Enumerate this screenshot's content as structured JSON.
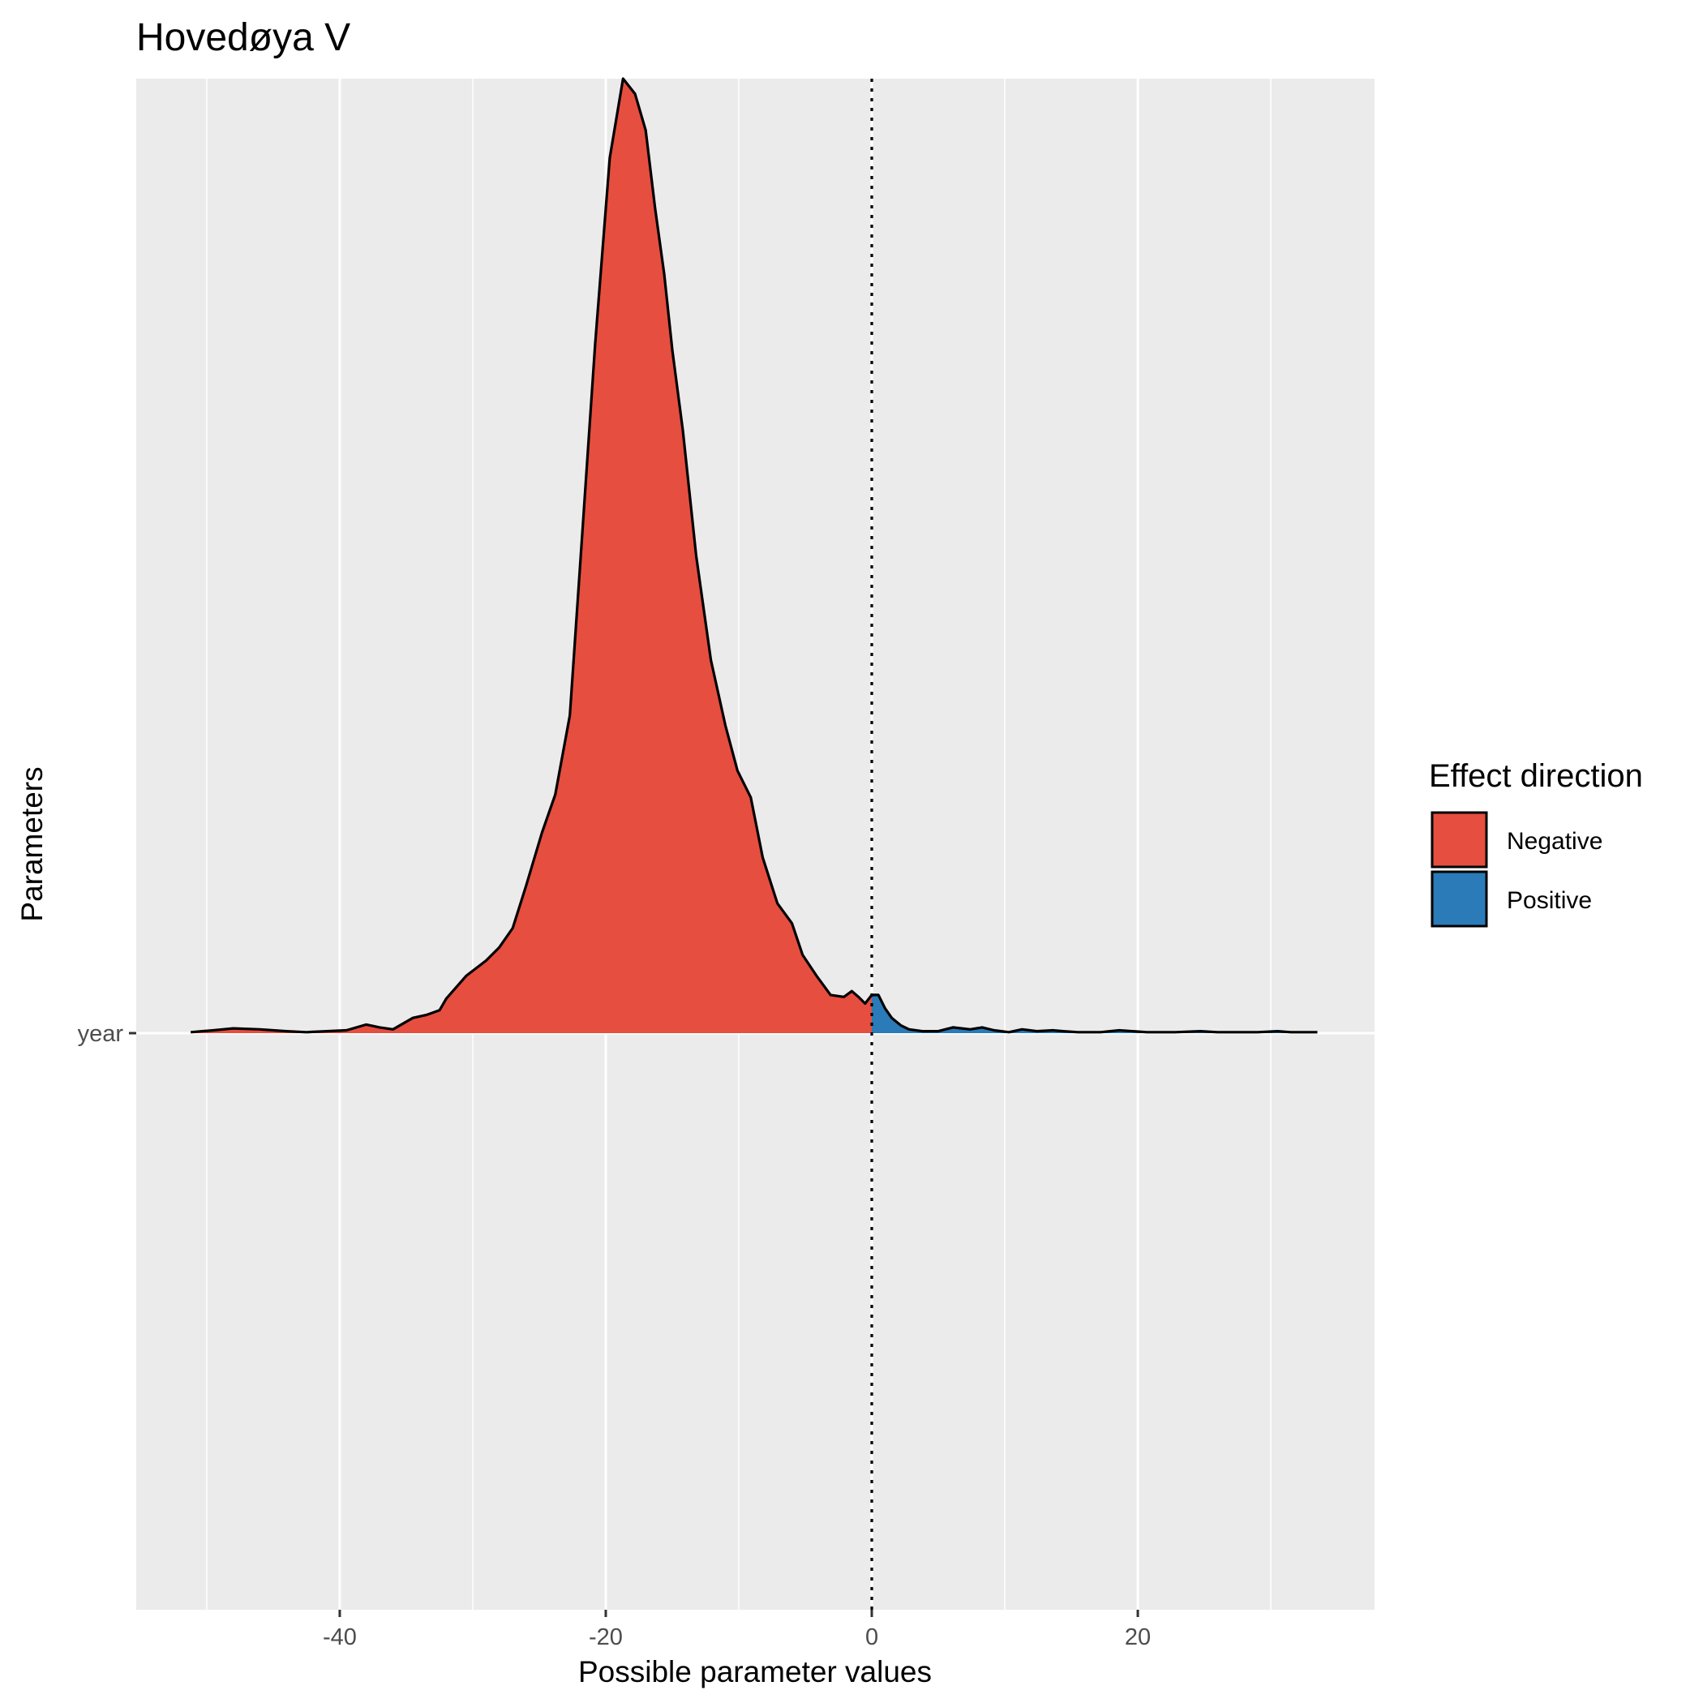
{
  "chart_data": {
    "type": "area",
    "subtype": "ridgeline-density",
    "title": "Hovedøya V",
    "xlabel": "Possible parameter values",
    "ylabel": "Parameters",
    "xlim": [
      -55.3,
      37.8
    ],
    "x_ticks": [
      -40,
      -20,
      0,
      20
    ],
    "x_tick_labels": [
      "-40",
      "-20",
      "0",
      "20"
    ],
    "y_categories": [
      "year"
    ],
    "reference_line": {
      "x": 0,
      "style": "dotted",
      "color": "#000000"
    },
    "grid": true,
    "panel_background": "#EBEBEB",
    "legend": {
      "title": "Effect direction",
      "position": "right",
      "entries": [
        {
          "label": "Negative",
          "color": "#E64E3F"
        },
        {
          "label": "Positive",
          "color": "#2A7BB8"
        }
      ]
    },
    "series": [
      {
        "name": "year",
        "density_relative": {
          "x": [
            -51.2,
            -49.5,
            -48,
            -46,
            -44,
            -42.5,
            -41,
            -39.5,
            -38,
            -37,
            -36,
            -34.5,
            -33.5,
            -32.5,
            -32,
            -30.5,
            -29,
            -28,
            -27,
            -26,
            -24.8,
            -23.8,
            -22.7,
            -21.8,
            -20.8,
            -19.7,
            -18.7,
            -17.8,
            -17,
            -16.3,
            -15.6,
            -15,
            -14.2,
            -13.2,
            -12.1,
            -11,
            -10.1,
            -9.1,
            -8.2,
            -7.1,
            -6,
            -5.2,
            -4.1,
            -3.1,
            -2.1,
            -1.5,
            -1,
            -0.5,
            0,
            0.5,
            1,
            1.5,
            2.2,
            2.8,
            3.8,
            5,
            6.1,
            7.4,
            8.3,
            9.2,
            10.3,
            11.3,
            12.4,
            13.6,
            14.4,
            15.5,
            17.2,
            18.6,
            20.7,
            22.8,
            24.7,
            26,
            27.5,
            29,
            30.5,
            31.5,
            33.5
          ],
          "y": [
            0.001,
            0.003,
            0.005,
            0.004,
            0.002,
            0.001,
            0.002,
            0.003,
            0.009,
            0.006,
            0.004,
            0.016,
            0.019,
            0.024,
            0.036,
            0.06,
            0.076,
            0.09,
            0.11,
            0.154,
            0.21,
            0.25,
            0.333,
            0.517,
            0.722,
            0.917,
            1.0,
            0.984,
            0.946,
            0.865,
            0.795,
            0.716,
            0.631,
            0.5,
            0.391,
            0.322,
            0.275,
            0.247,
            0.184,
            0.136,
            0.115,
            0.082,
            0.059,
            0.04,
            0.038,
            0.044,
            0.038,
            0.031,
            0.04,
            0.04,
            0.026,
            0.016,
            0.008,
            0.004,
            0.002,
            0.002,
            0.006,
            0.004,
            0.006,
            0.003,
            0.001,
            0.004,
            0.002,
            0.003,
            0.002,
            0.001,
            0.001,
            0.003,
            0.001,
            0.001,
            0.002,
            0.001,
            0.001,
            0.001,
            0.002,
            0.001,
            0.001
          ]
        }
      }
    ]
  }
}
